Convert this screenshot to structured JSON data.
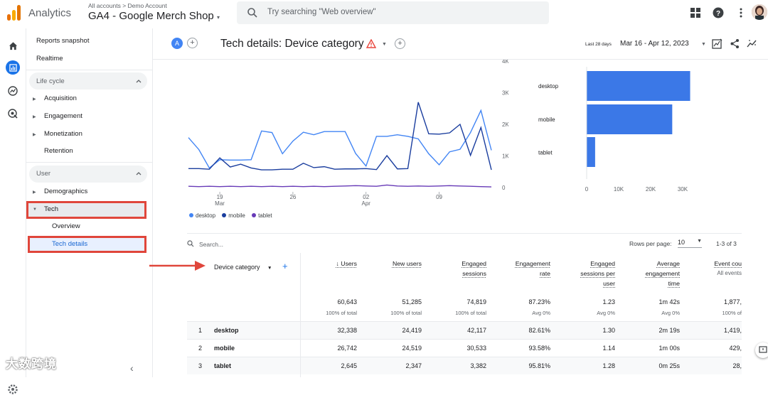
{
  "topbar": {
    "app_name": "Analytics",
    "breadcrumb": "All accounts > Demo Account",
    "property": "GA4 - Google Merch Shop",
    "search_placeholder": "Try searching \"Web overview\""
  },
  "nav": {
    "reports_snapshot": "Reports snapshot",
    "realtime": "Realtime",
    "lifecycle_title": "Life cycle",
    "lifecycle_items": [
      "Acquisition",
      "Engagement",
      "Monetization",
      "Retention"
    ],
    "user_title": "User",
    "demographics": "Demographics",
    "tech": "Tech",
    "tech_overview": "Overview",
    "tech_details": "Tech details"
  },
  "watermark": "大数跨境",
  "header": {
    "compare_letter": "A",
    "title": "Tech details: Device category",
    "date_label": "Last 28 days",
    "date_range": "Mar 16 - Apr 12, 2023"
  },
  "chart_data": [
    {
      "type": "line",
      "y_ticks": [
        "4K",
        "3K",
        "2K",
        "1K",
        "0"
      ],
      "ylim": [
        0,
        4000
      ],
      "x_ticks": [
        {
          "day": "19",
          "month": "Mar"
        },
        {
          "day": "26",
          "month": ""
        },
        {
          "day": "02",
          "month": "Apr"
        },
        {
          "day": "09",
          "month": ""
        }
      ],
      "series": [
        {
          "name": "desktop",
          "color": "#4285f4",
          "values": [
            1580,
            1200,
            620,
            880,
            870,
            870,
            880,
            1790,
            1740,
            1070,
            1470,
            1750,
            1670,
            1770,
            1770,
            1770,
            1080,
            680,
            1620,
            1620,
            1670,
            1620,
            1540,
            1070,
            720,
            1130,
            1210,
            1740,
            2440,
            1180
          ]
        },
        {
          "name": "mobile",
          "color": "#1a3d9e",
          "values": [
            600,
            600,
            580,
            940,
            650,
            740,
            620,
            560,
            560,
            580,
            580,
            770,
            630,
            660,
            580,
            590,
            590,
            600,
            570,
            1010,
            590,
            600,
            2700,
            1700,
            1690,
            1730,
            2000,
            1020,
            1900,
            560
          ]
        },
        {
          "name": "tablet",
          "color": "#673ab7",
          "values": [
            40,
            30,
            40,
            30,
            40,
            30,
            40,
            30,
            40,
            30,
            40,
            30,
            40,
            30,
            40,
            50,
            60,
            50,
            40,
            80,
            50,
            40,
            50,
            40,
            50,
            60,
            50,
            40,
            30,
            20
          ]
        }
      ]
    },
    {
      "type": "bar",
      "orientation": "horizontal",
      "categories": [
        "desktop",
        "mobile",
        "tablet"
      ],
      "values": [
        32338,
        26742,
        2645
      ],
      "x_ticks": [
        "0",
        "10K",
        "20K",
        "30K"
      ],
      "xlim": [
        0,
        40000
      ],
      "color": "#3b78e7"
    }
  ],
  "legend": [
    {
      "name": "desktop",
      "color": "#4285f4"
    },
    {
      "name": "mobile",
      "color": "#1a3d9e"
    },
    {
      "name": "tablet",
      "color": "#673ab7"
    }
  ],
  "table": {
    "search_placeholder": "Search...",
    "rows_per_page_label": "Rows per page:",
    "rows_per_page_value": "10",
    "pager": "1-3 of 3",
    "dimension_header": "Device category",
    "columns": [
      {
        "lines": [
          "↓ Users"
        ],
        "total": "60,643",
        "sub": "100% of total"
      },
      {
        "lines": [
          "New users"
        ],
        "total": "51,285",
        "sub": "100% of total"
      },
      {
        "lines": [
          "Engaged",
          "sessions"
        ],
        "total": "74,819",
        "sub": "100% of total"
      },
      {
        "lines": [
          "Engagement",
          "rate"
        ],
        "total": "87.23%",
        "sub": "Avg 0%"
      },
      {
        "lines": [
          "Engaged",
          "sessions per",
          "user"
        ],
        "total": "1.23",
        "sub": "Avg 0%"
      },
      {
        "lines": [
          "Average",
          "engagement",
          "time"
        ],
        "total": "1m 42s",
        "sub": "Avg 0%"
      },
      {
        "lines": [
          "Event cou",
          "All events"
        ],
        "total": "1,877,",
        "sub": "100% of"
      }
    ],
    "rows": [
      {
        "idx": "1",
        "dim": "desktop",
        "cells": [
          "32,338",
          "24,419",
          "42,117",
          "82.61%",
          "1.30",
          "2m 19s",
          "1,419,"
        ]
      },
      {
        "idx": "2",
        "dim": "mobile",
        "cells": [
          "26,742",
          "24,519",
          "30,533",
          "93.58%",
          "1.14",
          "1m 00s",
          "429,"
        ]
      },
      {
        "idx": "3",
        "dim": "tablet",
        "cells": [
          "2,645",
          "2,347",
          "3,382",
          "95.81%",
          "1.28",
          "0m 25s",
          "28,"
        ]
      }
    ]
  },
  "colors": {
    "accent": "#1a73e8",
    "highlight": "#e0463b"
  }
}
